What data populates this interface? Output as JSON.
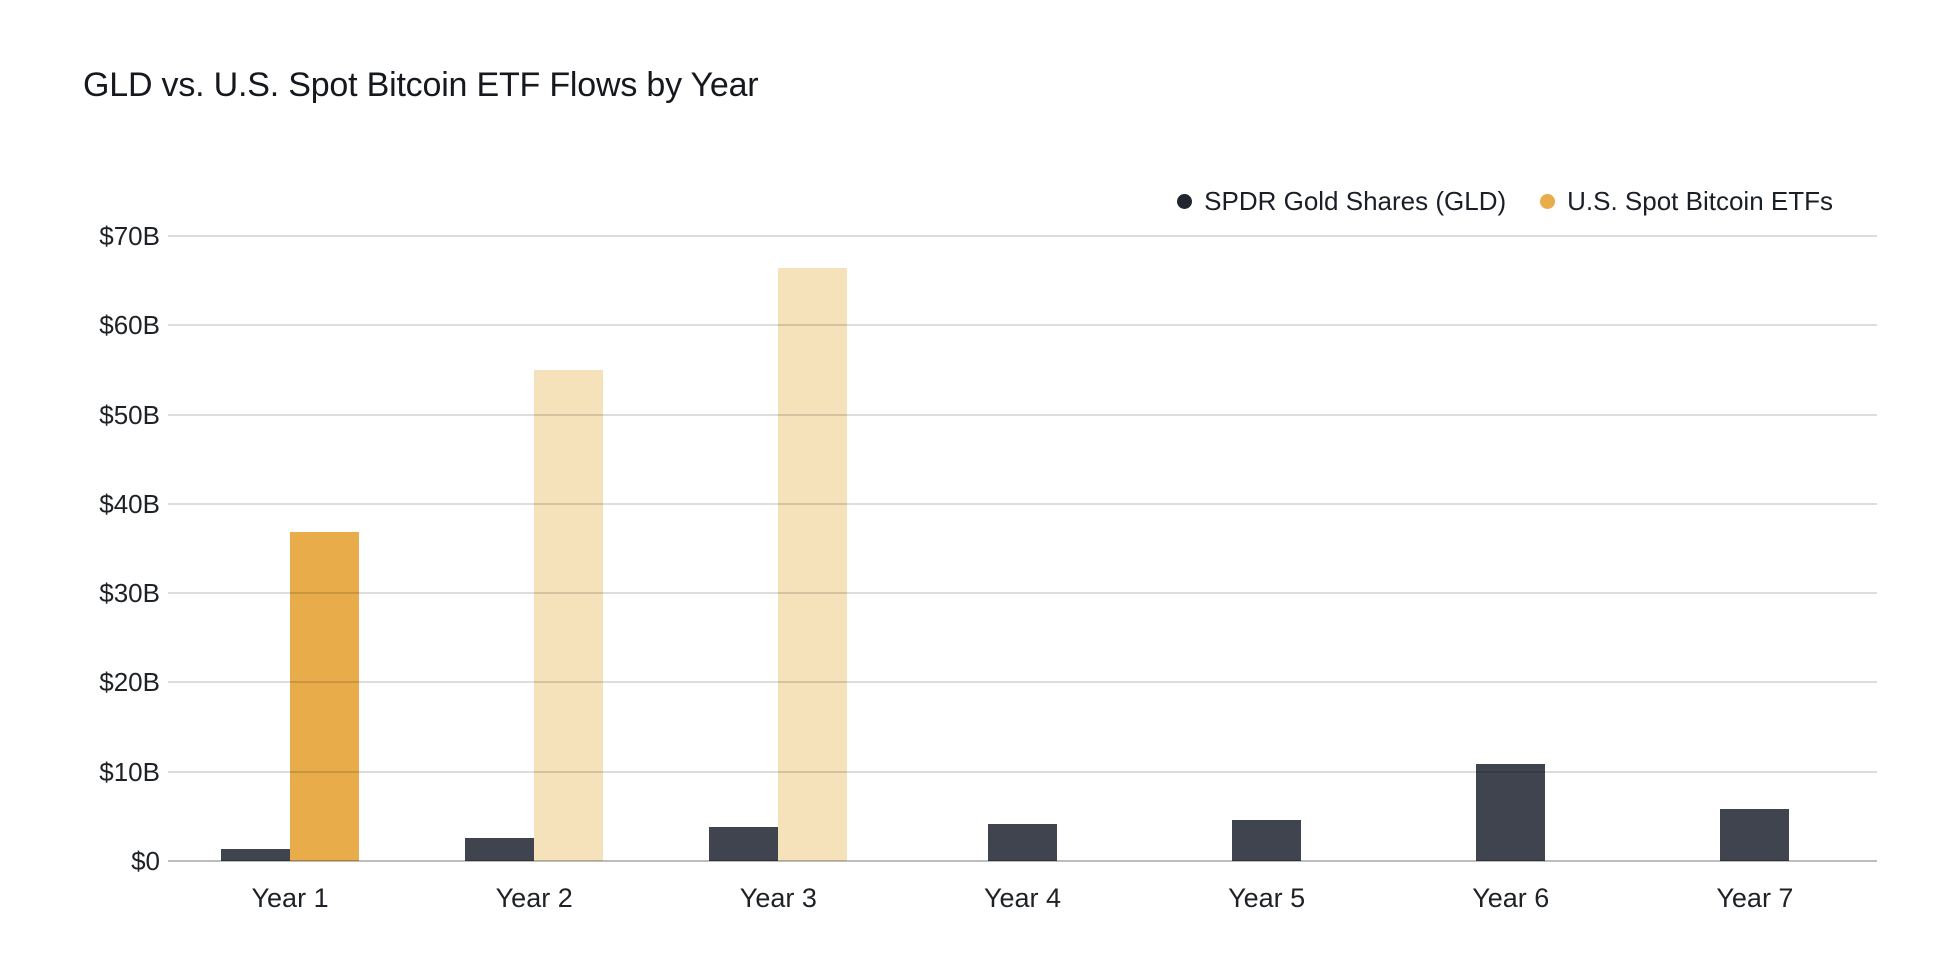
{
  "title": "GLD vs. U.S. Spot Bitcoin ETF Flows by Year",
  "legend": {
    "items": [
      {
        "label": "SPDR Gold Shares (GLD)",
        "color": "#20252f"
      },
      {
        "label": "U.S. Spot Bitcoin ETFs",
        "color": "#e8ac4b"
      }
    ]
  },
  "colors": {
    "gld_bar": "#3f444f",
    "btc_bar_solid": "#e8ac4b",
    "btc_bar_faded": "#f5e2ba",
    "gridline": "#dddddd",
    "axis_line": "#bfbfbf",
    "title_text": "#15181e",
    "tick_text": "#1e2126"
  },
  "chart_data": {
    "type": "bar",
    "title": "GLD vs. U.S. Spot Bitcoin ETF Flows by Year",
    "categories": [
      "Year 1",
      "Year 2",
      "Year 3",
      "Year 4",
      "Year 5",
      "Year 6",
      "Year 7"
    ],
    "series": [
      {
        "name": "SPDR Gold Shares (GLD)",
        "color": "#3f444f",
        "values": [
          1.3,
          2.6,
          3.8,
          4.2,
          4.6,
          10.9,
          5.8
        ]
      },
      {
        "name": "U.S. Spot Bitcoin ETFs",
        "color": "#e8ac4b",
        "faded_color": "#f5e2ba",
        "values": [
          36.8,
          55,
          66.4,
          null,
          null,
          null,
          null
        ],
        "faded": [
          false,
          true,
          true,
          false,
          false,
          false,
          false
        ]
      }
    ],
    "xlabel": "",
    "ylabel": "",
    "ylim": [
      0,
      70
    ],
    "ytick_values": [
      0,
      10,
      20,
      30,
      40,
      50,
      60,
      70
    ],
    "ytick_labels": [
      "$0",
      "$10B",
      "$20B",
      "$30B",
      "$40B",
      "$50B",
      "$60B",
      "$70B"
    ],
    "grid": true,
    "gridlines_over_bars": true,
    "legend_position": "top-right"
  }
}
